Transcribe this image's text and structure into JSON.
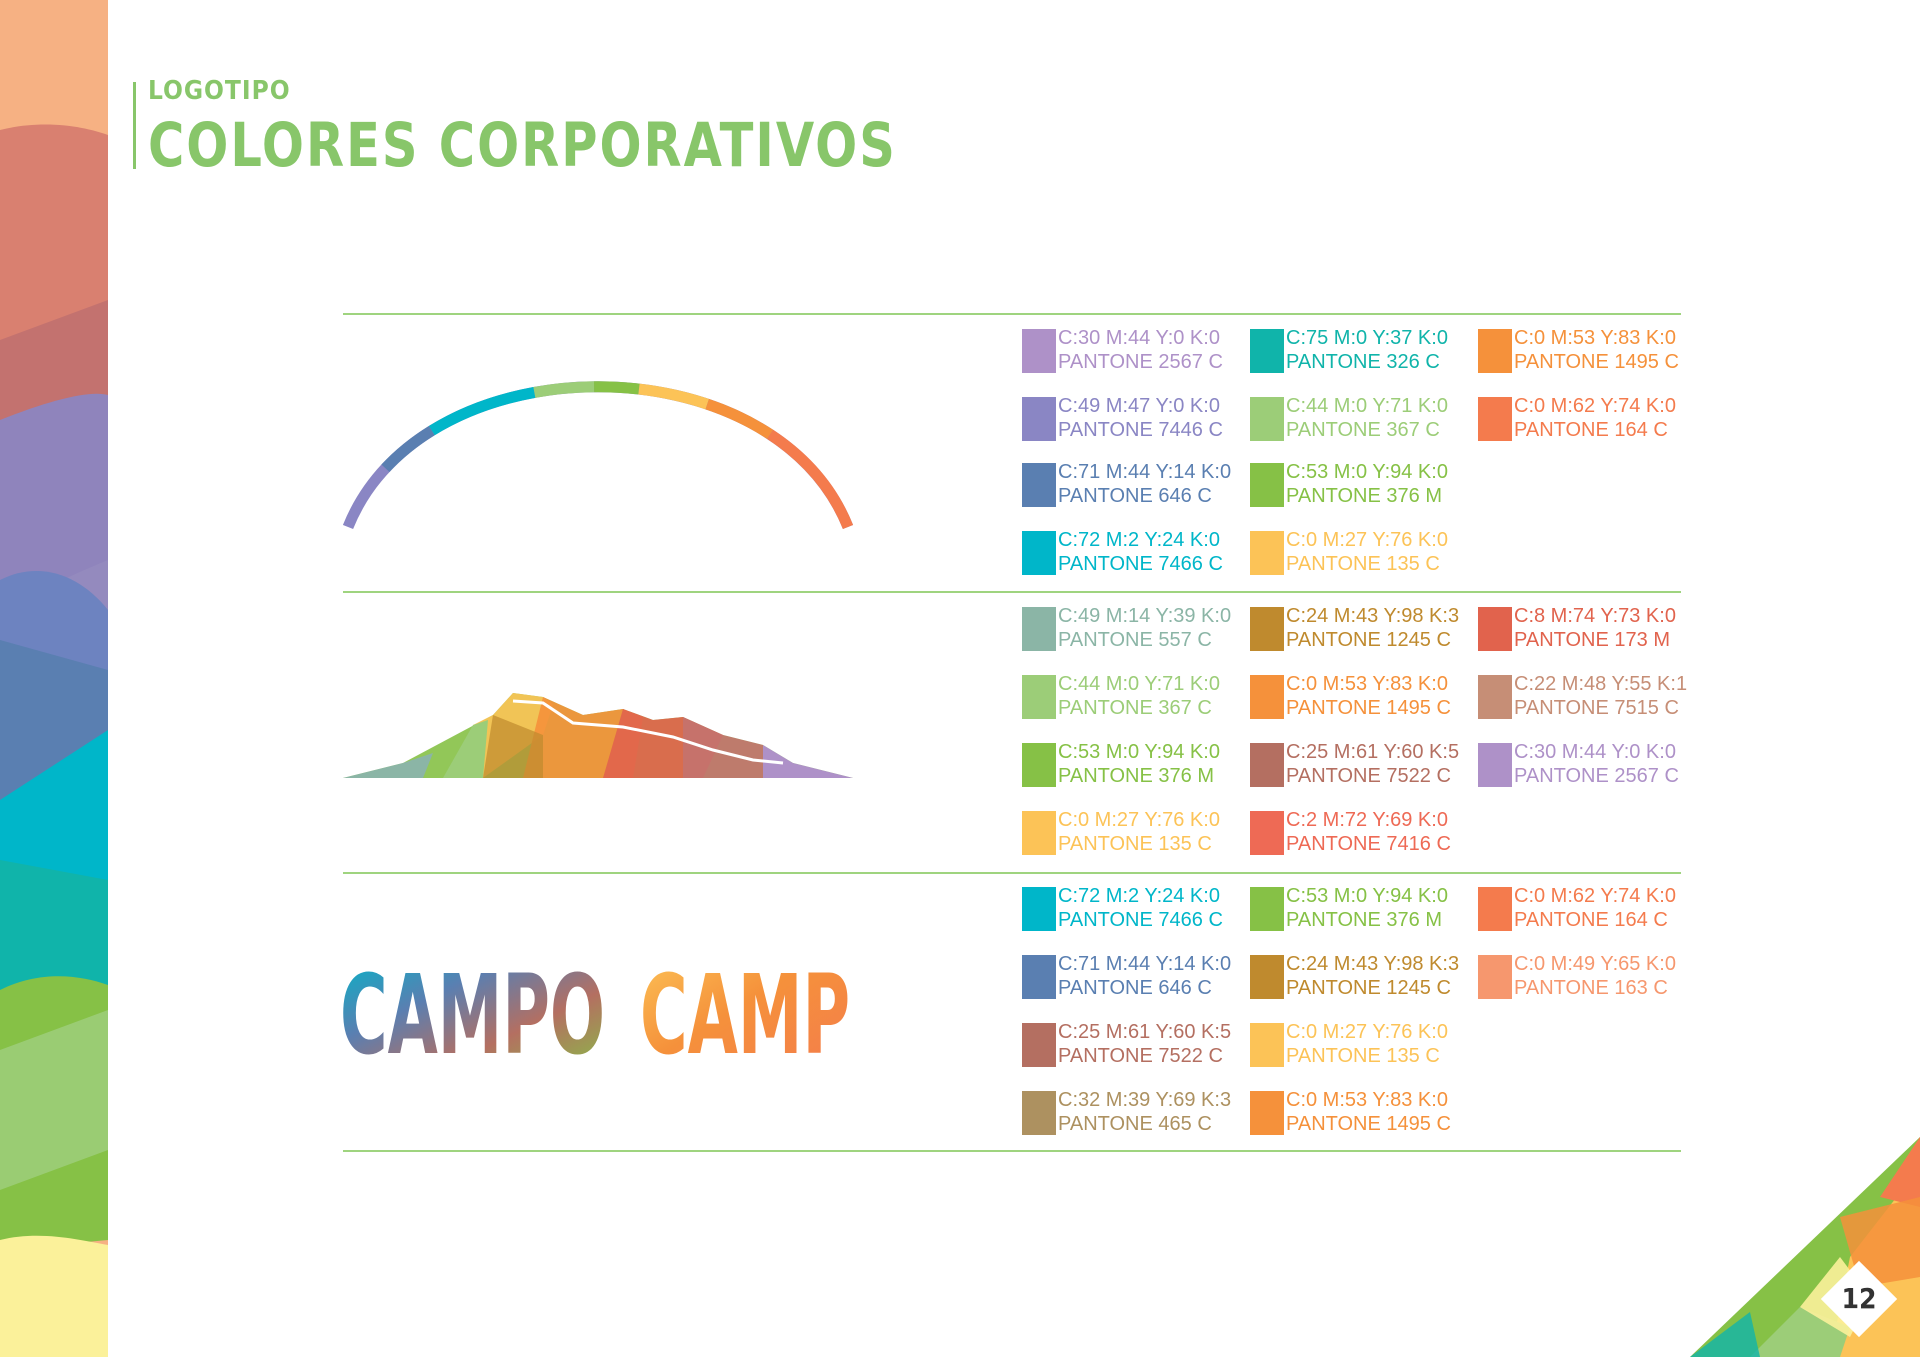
{
  "header": {
    "section": "LOGOTIPO",
    "title": "COLORES CORPORATIVOS"
  },
  "page_number": "12",
  "wordmark": {
    "word1": "CAMPO",
    "word2": "CAMP"
  },
  "groups": [
    {
      "name": "arc-icon",
      "swatches": [
        {
          "cmyk": "C:30 M:44 Y:0 K:0",
          "pantone": "PANTONE 2567 C",
          "color": "#ae91c8"
        },
        {
          "cmyk": "C:49 M:47 Y:0 K:0",
          "pantone": "PANTONE 7446 C",
          "color": "#8a86c4"
        },
        {
          "cmyk": "C:71 M:44 Y:14 K:0",
          "pantone": "PANTONE 646 C",
          "color": "#5a7fb1"
        },
        {
          "cmyk": "C:72 M:2 Y:24 K:0",
          "pantone": "PANTONE 7466 C",
          "color": "#00b6c9"
        },
        {
          "cmyk": "C:75 M:0 Y:37 K:0",
          "pantone": "PANTONE 326 C",
          "color": "#10b4aa"
        },
        {
          "cmyk": "C:44 M:0 Y:71 K:0",
          "pantone": "PANTONE 367 C",
          "color": "#9ccd78"
        },
        {
          "cmyk": "C:53 M:0 Y:94 K:0",
          "pantone": "PANTONE 376 M",
          "color": "#86c146"
        },
        {
          "cmyk": "C:0 M:27 Y:76 K:0",
          "pantone": "PANTONE 135 C",
          "color": "#fcc357"
        },
        {
          "cmyk": "C:0 M:53 Y:83 K:0",
          "pantone": "PANTONE 1495 C",
          "color": "#f5913b"
        },
        {
          "cmyk": "C:0 M:62 Y:74 K:0",
          "pantone": "PANTONE 164 C",
          "color": "#f47b4d"
        }
      ]
    },
    {
      "name": "mountain-icon",
      "swatches": [
        {
          "cmyk": "C:49 M:14 Y:39 K:0",
          "pantone": "PANTONE 557 C",
          "color": "#8bb5a6"
        },
        {
          "cmyk": "C:44 M:0 Y:71 K:0",
          "pantone": "PANTONE 367 C",
          "color": "#9ccd78"
        },
        {
          "cmyk": "C:53 M:0 Y:94 K:0",
          "pantone": "PANTONE 376 M",
          "color": "#86c146"
        },
        {
          "cmyk": "C:0 M:27 Y:76 K:0",
          "pantone": "PANTONE 135 C",
          "color": "#fcc357"
        },
        {
          "cmyk": "C:24 M:43 Y:98 K:3",
          "pantone": "PANTONE 1245 C",
          "color": "#bf8a2e"
        },
        {
          "cmyk": "C:0 M:53 Y:83 K:0",
          "pantone": "PANTONE 1495 C",
          "color": "#f5913b"
        },
        {
          "cmyk": "C:25 M:61 Y:60 K:5",
          "pantone": "PANTONE 7522 C",
          "color": "#b46f61"
        },
        {
          "cmyk": "C:2 M:72 Y:69 K:0",
          "pantone": "PANTONE 7416 C",
          "color": "#ee6a55"
        },
        {
          "cmyk": "C:8 M:74 Y:73 K:0",
          "pantone": "PANTONE 173 M",
          "color": "#e1634d"
        },
        {
          "cmyk": "C:22 M:48 Y:55 K:1",
          "pantone": "PANTONE 7515 C",
          "color": "#c68e76"
        },
        {
          "cmyk": "C:30 M:44 Y:0 K:0",
          "pantone": "PANTONE 2567 C",
          "color": "#ae91c8"
        }
      ]
    },
    {
      "name": "wordmark",
      "swatches": [
        {
          "cmyk": "C:72 M:2 Y:24 K:0",
          "pantone": "PANTONE 7466 C",
          "color": "#00b6c9"
        },
        {
          "cmyk": "C:71 M:44 Y:14 K:0",
          "pantone": "PANTONE 646 C",
          "color": "#5a7fb1"
        },
        {
          "cmyk": "C:25 M:61 Y:60 K:5",
          "pantone": "PANTONE 7522 C",
          "color": "#b46f61"
        },
        {
          "cmyk": "C:32 M:39 Y:69 K:3",
          "pantone": "PANTONE 465 C",
          "color": "#ad9160"
        },
        {
          "cmyk": "C:53 M:0 Y:94 K:0",
          "pantone": "PANTONE 376 M",
          "color": "#86c146"
        },
        {
          "cmyk": "C:24 M:43 Y:98 K:3",
          "pantone": "PANTONE 1245 C",
          "color": "#bf8a2e"
        },
        {
          "cmyk": "C:0 M:27 Y:76 K:0",
          "pantone": "PANTONE 135 C",
          "color": "#fcc357"
        },
        {
          "cmyk": "C:0 M:53 Y:83 K:0",
          "pantone": "PANTONE 1495 C",
          "color": "#f5913b"
        },
        {
          "cmyk": "C:0 M:62 Y:74 K:0",
          "pantone": "PANTONE 164 C",
          "color": "#f47b4d"
        },
        {
          "cmyk": "C:0 M:49 Y:65 K:0",
          "pantone": "PANTONE 163 C",
          "color": "#f6976e"
        }
      ]
    }
  ]
}
